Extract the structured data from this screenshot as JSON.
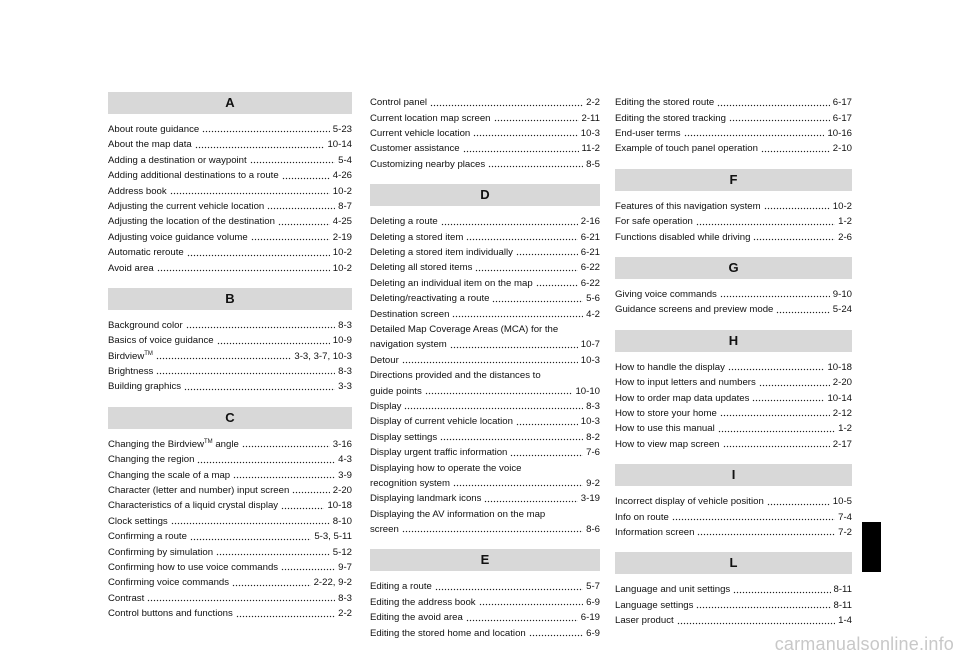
{
  "columns": [
    {
      "sections": [
        {
          "letter": "A",
          "entries": [
            {
              "text": "About route guidance",
              "page": "5-23"
            },
            {
              "text": "About the map data",
              "page": "10-14"
            },
            {
              "text": "Adding a destination or waypoint",
              "page": "5-4"
            },
            {
              "text": "Adding additional destinations to a route",
              "page": "4-26"
            },
            {
              "text": "Address book",
              "page": "10-2"
            },
            {
              "text": "Adjusting the current vehicle location",
              "page": "8-7"
            },
            {
              "text": "Adjusting the location of the destination",
              "page": "4-25"
            },
            {
              "text": "Adjusting voice guidance volume",
              "page": "2-19"
            },
            {
              "text": "Automatic reroute",
              "page": "10-2"
            },
            {
              "text": "Avoid area",
              "page": "10-2"
            }
          ]
        },
        {
          "letter": "B",
          "entries": [
            {
              "text": "Background color",
              "page": "8-3"
            },
            {
              "text": "Basics of voice guidance",
              "page": "10-9"
            },
            {
              "text": "Birdview",
              "sup": "TM",
              "page": "3-3, 3-7, 10-3"
            },
            {
              "text": "Brightness",
              "page": "8-3"
            },
            {
              "text": "Building graphics",
              "page": "3-3"
            }
          ]
        },
        {
          "letter": "C",
          "entries": [
            {
              "text": "Changing the Birdview",
              "sup": "TM",
              "after": " angle",
              "page": "3-16"
            },
            {
              "text": "Changing the region",
              "page": "4-3"
            },
            {
              "text": "Changing the scale of a map",
              "page": "3-9"
            },
            {
              "text": "Character (letter and number) input screen",
              "page": "2-20"
            },
            {
              "text": "Characteristics of a liquid crystal display",
              "page": "10-18"
            },
            {
              "text": "Clock settings",
              "page": "8-10"
            },
            {
              "text": "Confirming a route",
              "page": "5-3, 5-11"
            },
            {
              "text": "Confirming by simulation",
              "page": "5-12"
            },
            {
              "text": "Confirming how to use voice commands",
              "page": "9-7"
            },
            {
              "text": "Confirming voice commands",
              "page": "2-22, 9-2"
            },
            {
              "text": "Contrast",
              "page": "8-3"
            },
            {
              "text": "Control buttons and functions",
              "page": "2-2"
            }
          ]
        }
      ]
    },
    {
      "sections": [
        {
          "entries": [
            {
              "text": "Control panel",
              "page": "2-2"
            },
            {
              "text": "Current location map screen",
              "page": "2-11"
            },
            {
              "text": "Current vehicle location",
              "page": "10-3"
            },
            {
              "text": "Customer assistance",
              "page": "11-2"
            },
            {
              "text": "Customizing nearby places",
              "page": "8-5"
            }
          ]
        },
        {
          "letter": "D",
          "entries": [
            {
              "text": "Deleting a route",
              "page": "2-16"
            },
            {
              "text": "Deleting a stored item",
              "page": "6-21"
            },
            {
              "text": "Deleting a stored item individually",
              "page": "6-21"
            },
            {
              "text": "Deleting all stored items",
              "page": "6-22"
            },
            {
              "text": "Deleting an individual item on the map",
              "page": "6-22"
            },
            {
              "text": "Deleting/reactivating a route",
              "page": "5-6"
            },
            {
              "text": "Destination screen",
              "page": "4-2"
            },
            {
              "lines": [
                "Detailed Map Coverage Areas (MCA) for the",
                "navigation system"
              ],
              "page": "10-7"
            },
            {
              "text": "Detour",
              "page": "10-3"
            },
            {
              "lines": [
                "Directions provided and the distances to",
                "guide points"
              ],
              "page": "10-10"
            },
            {
              "text": "Display",
              "page": "8-3"
            },
            {
              "text": "Display of current vehicle location",
              "page": "10-3"
            },
            {
              "text": "Display settings",
              "page": "8-2"
            },
            {
              "text": "Display urgent traffic information",
              "page": "7-6"
            },
            {
              "lines": [
                "Displaying how to operate the voice",
                "recognition system"
              ],
              "page": "9-2"
            },
            {
              "text": "Displaying landmark icons",
              "page": "3-19"
            },
            {
              "lines": [
                "Displaying the AV information on the map",
                "screen"
              ],
              "page": "8-6"
            }
          ]
        },
        {
          "letter": "E",
          "entries": [
            {
              "text": "Editing a route",
              "page": "5-7"
            },
            {
              "text": "Editing the address book",
              "page": "6-9"
            },
            {
              "text": "Editing the avoid area",
              "page": "6-19"
            },
            {
              "text": "Editing the stored home and location",
              "page": "6-9"
            }
          ]
        }
      ]
    },
    {
      "sections": [
        {
          "entries": [
            {
              "text": "Editing the stored route",
              "page": "6-17"
            },
            {
              "text": "Editing the stored tracking",
              "page": "6-17"
            },
            {
              "text": "End-user terms",
              "page": "10-16"
            },
            {
              "text": "Example of touch panel operation",
              "page": "2-10"
            }
          ]
        },
        {
          "letter": "F",
          "entries": [
            {
              "text": "Features of this navigation system",
              "page": "10-2"
            },
            {
              "text": "For safe operation",
              "page": "1-2"
            },
            {
              "text": "Functions disabled while driving",
              "page": "2-6"
            }
          ]
        },
        {
          "letter": "G",
          "entries": [
            {
              "text": "Giving voice commands",
              "page": "9-10"
            },
            {
              "text": "Guidance screens and preview mode",
              "page": "5-24"
            }
          ]
        },
        {
          "letter": "H",
          "entries": [
            {
              "text": "How to handle the display",
              "page": "10-18"
            },
            {
              "text": "How to input letters and numbers",
              "page": "2-20"
            },
            {
              "text": "How to order map data updates",
              "page": "10-14"
            },
            {
              "text": "How to store your home",
              "page": "2-12"
            },
            {
              "text": "How to use this manual",
              "page": "1-2"
            },
            {
              "text": "How to view map screen",
              "page": "2-17"
            }
          ]
        },
        {
          "letter": "I",
          "entries": [
            {
              "text": "Incorrect display of vehicle position",
              "page": "10-5"
            },
            {
              "text": "Info on route",
              "page": "7-4"
            },
            {
              "text": "Information screen",
              "page": "7-2"
            }
          ]
        },
        {
          "letter": "L",
          "entries": [
            {
              "text": "Language and unit settings",
              "page": "8-11"
            },
            {
              "text": "Language settings",
              "page": "8-11"
            },
            {
              "text": "Laser product",
              "page": "1-4"
            }
          ]
        }
      ]
    }
  ],
  "watermark": "carmanualsonline.info"
}
